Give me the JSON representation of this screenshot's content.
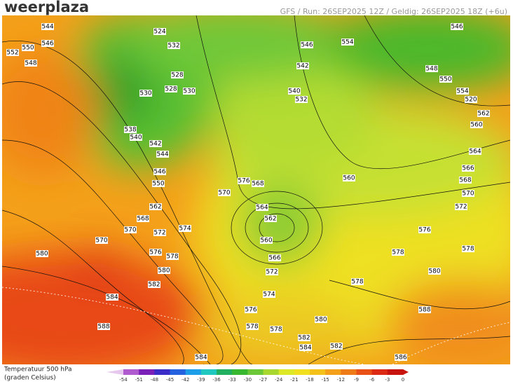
{
  "header": {
    "logo": "weerplaza",
    "run_info": "GFS / Run: 26SEP2025 12Z / Geldig: 26SEP2025 18Z (+6u)"
  },
  "map": {
    "height_labels": [
      552,
      550,
      548,
      546,
      544,
      524,
      532,
      528,
      530,
      528,
      530,
      538,
      540,
      542,
      544,
      546,
      550,
      562,
      568,
      570,
      572,
      574,
      570,
      580,
      576,
      578,
      580,
      582,
      584,
      588,
      584,
      570,
      576,
      568,
      564,
      562,
      560,
      566,
      572,
      574,
      576,
      578,
      578,
      580,
      582,
      584,
      582,
      586,
      588,
      580,
      578,
      578,
      576,
      572,
      570,
      568,
      566,
      564,
      560,
      562,
      520,
      554,
      550,
      548,
      546,
      554,
      546,
      542,
      540,
      532,
      560,
      578
    ]
  },
  "legend": {
    "title": "Temperatuur 500 hPa",
    "subtitle": "(graden Celsius)",
    "ticks": [
      -54,
      -51,
      -48,
      -45,
      -42,
      -39,
      -36,
      -33,
      -30,
      -27,
      -24,
      -21,
      -18,
      -15,
      -12,
      -9,
      -6,
      -3,
      0
    ],
    "colors": [
      "#e6c8ee",
      "#b05ad0",
      "#7a20b8",
      "#3a2cc8",
      "#2462e0",
      "#1c9ee8",
      "#20c8c0",
      "#20b060",
      "#38b830",
      "#6cc838",
      "#a8d830",
      "#dce828",
      "#f0e020",
      "#f5c21c",
      "#f4a01a",
      "#ef7a18",
      "#e85018",
      "#dc2a14",
      "#c8140e"
    ]
  }
}
